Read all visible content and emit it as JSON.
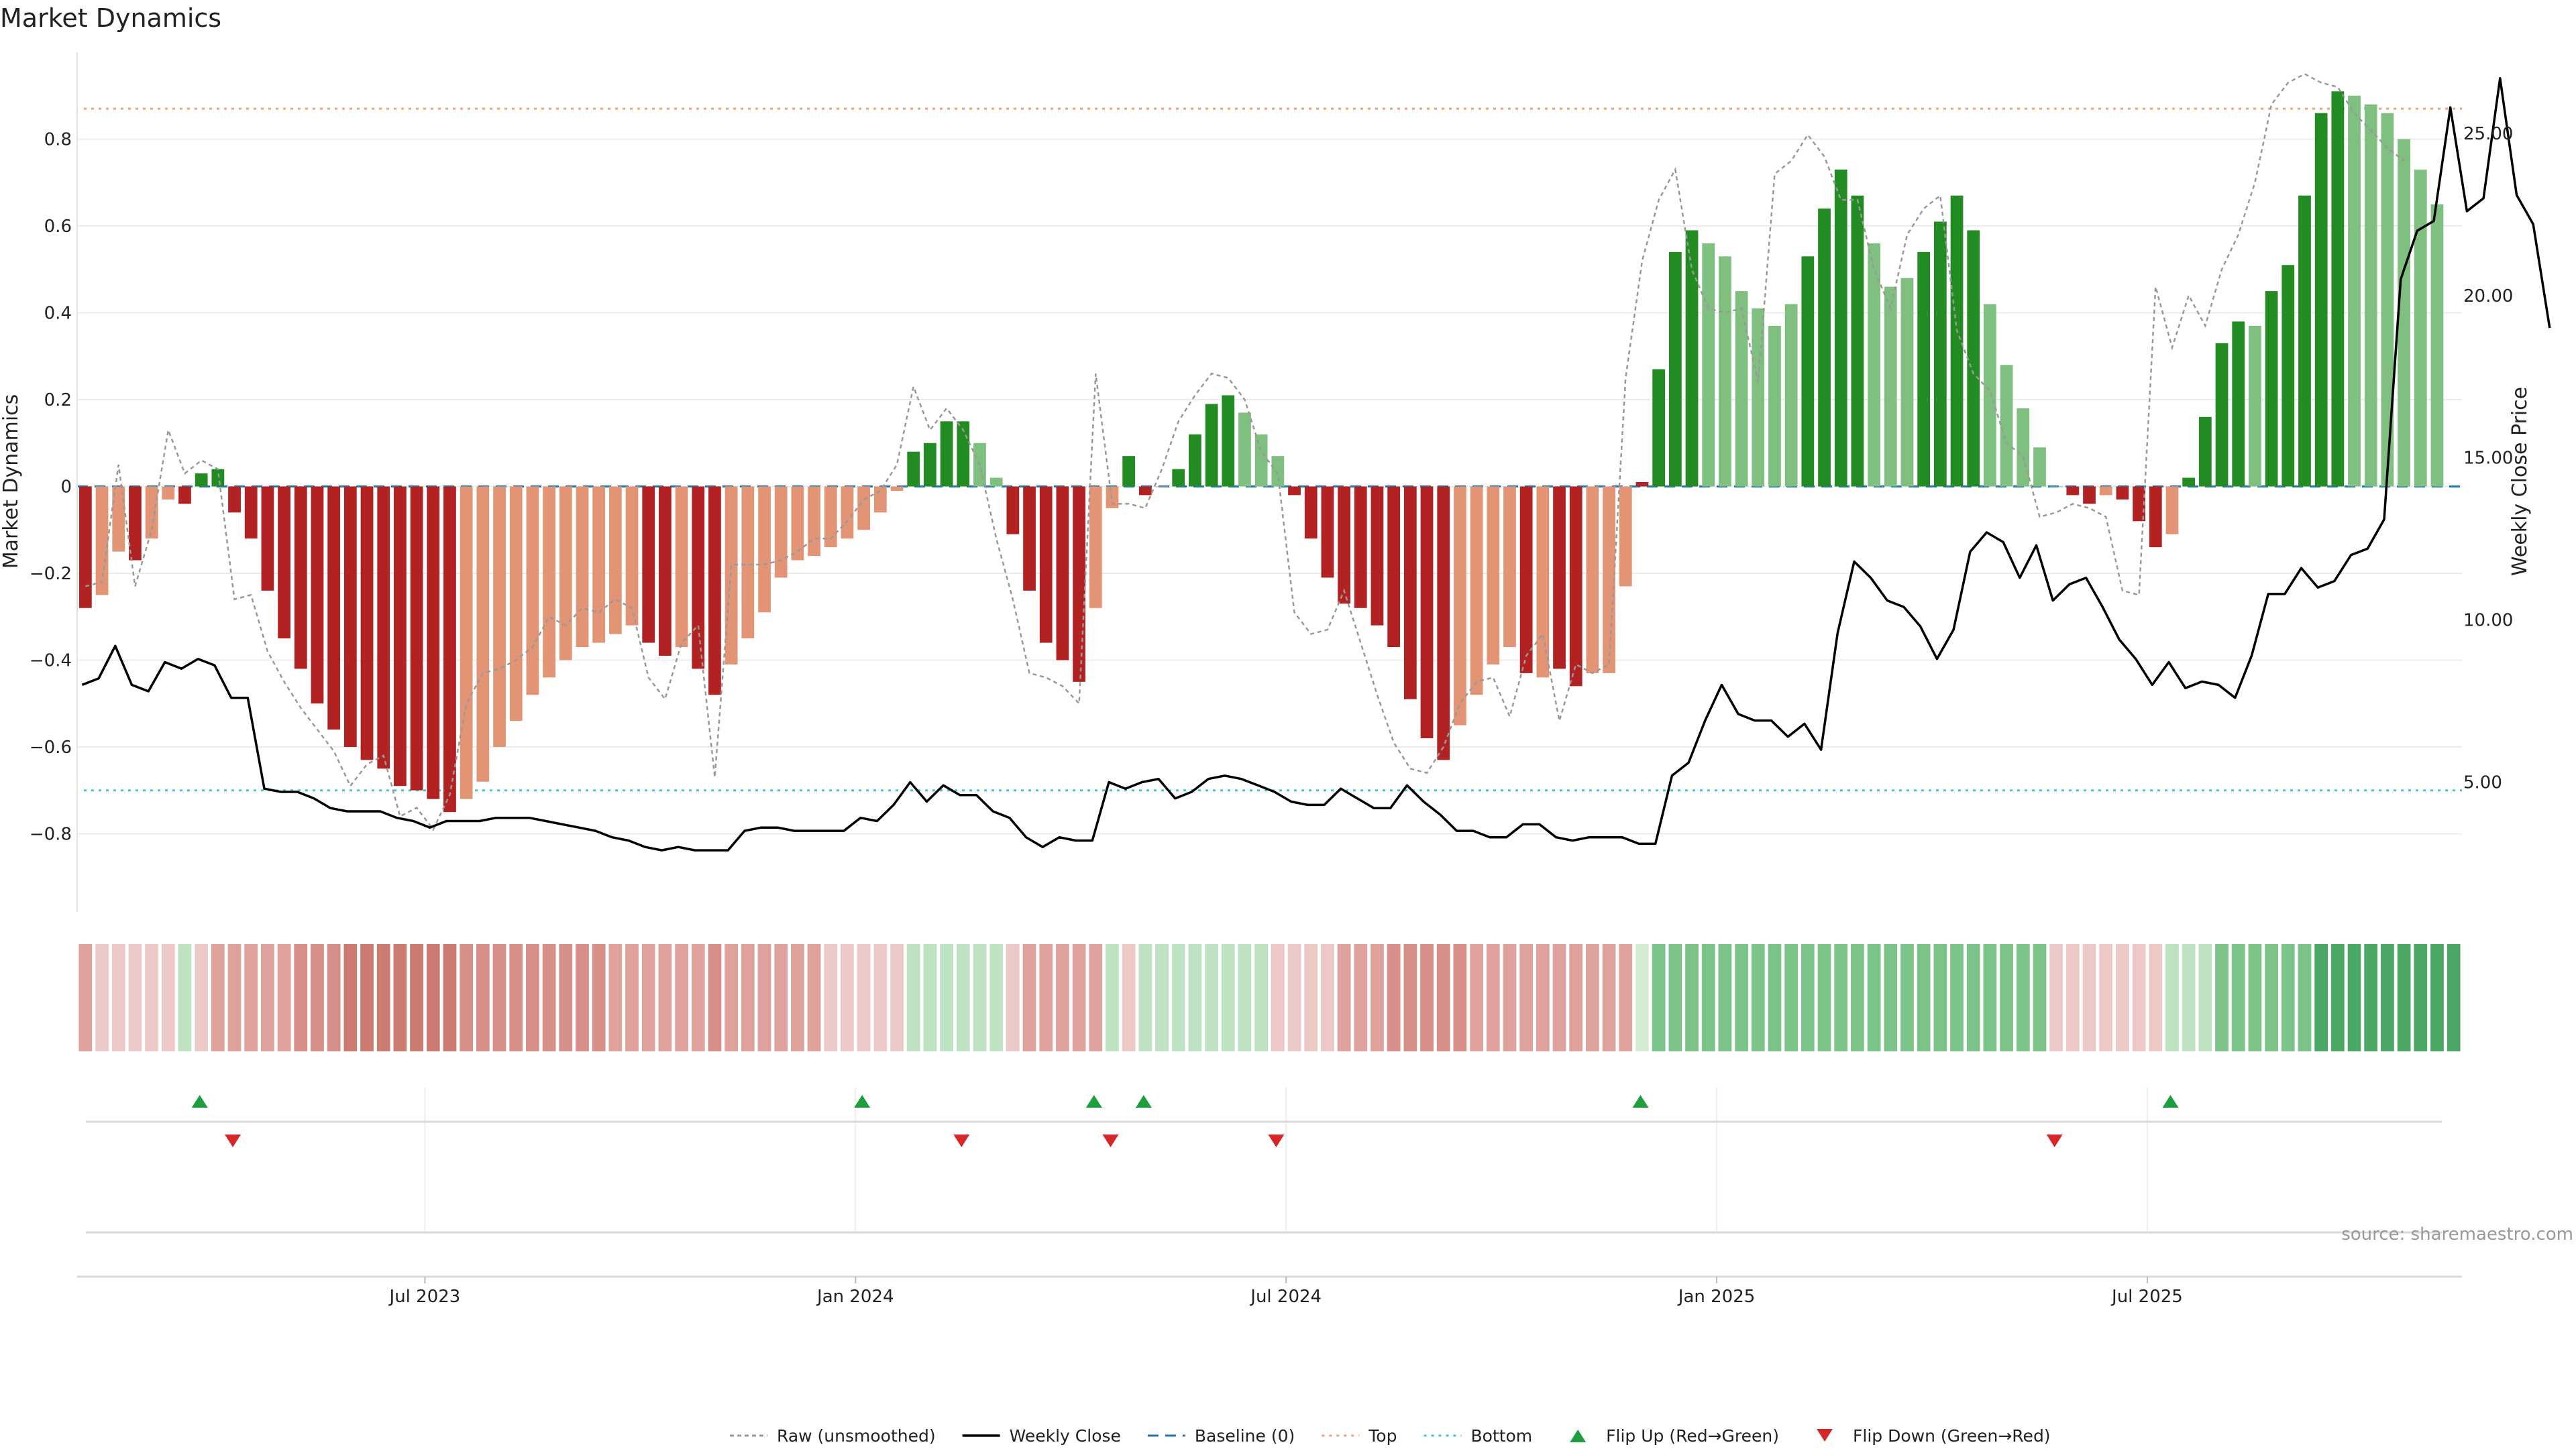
{
  "chart_data": {
    "type": "bar",
    "title": "Market Dynamics",
    "source": "source: sharemaestro.com",
    "ylabel_left": "Market Dynamics",
    "ylabel_right": "Weekly Close Price",
    "ylim_left": [
      -0.98,
      1.0
    ],
    "ylim_right": [
      1.0,
      27.5
    ],
    "yticks_left": [
      "−0.8",
      "−0.6",
      "−0.4",
      "−0.2",
      "0",
      "0.2",
      "0.4",
      "0.6",
      "0.8"
    ],
    "yticks_left_values": [
      -0.8,
      -0.6,
      -0.4,
      -0.2,
      0,
      0.2,
      0.4,
      0.6,
      0.8
    ],
    "yticks_right": [
      "5.00",
      "10.00",
      "15.00",
      "20.00",
      "25.00"
    ],
    "yticks_right_values": [
      5,
      10,
      15,
      20,
      25
    ],
    "x_start": "2023-02-06",
    "bar_weeks": 144,
    "xticks": [
      {
        "label": "Jul 2023",
        "week": 21
      },
      {
        "label": "Jan 2024",
        "week": 47
      },
      {
        "label": "Jul 2024",
        "week": 73
      },
      {
        "label": "Jan 2025",
        "week": 99
      },
      {
        "label": "Jul 2025",
        "week": 125
      }
    ],
    "top_level": 0.87,
    "bottom_level": -0.7,
    "baseline": 0,
    "colors": {
      "strong_red": "#b22222",
      "light_red": "#e39474",
      "strong_green": "#228b22",
      "light_green": "#7fbf7f",
      "raw": "#999999",
      "close": "#000000",
      "baseline": "#1f77b4",
      "top": "#f0a07a",
      "bottom": "#40c8d0",
      "flip_up": "#1e9e3e",
      "flip_down": "#d62728"
    },
    "series": [
      {
        "name": "Market Dynamics",
        "values": [
          -0.28,
          -0.25,
          -0.15,
          -0.17,
          -0.12,
          -0.03,
          -0.04,
          0.03,
          0.04,
          -0.06,
          -0.12,
          -0.24,
          -0.35,
          -0.42,
          -0.5,
          -0.56,
          -0.6,
          -0.63,
          -0.65,
          -0.69,
          -0.7,
          -0.72,
          -0.75,
          -0.72,
          -0.68,
          -0.6,
          -0.54,
          -0.48,
          -0.44,
          -0.4,
          -0.37,
          -0.36,
          -0.34,
          -0.32,
          -0.36,
          -0.39,
          -0.37,
          -0.42,
          -0.48,
          -0.41,
          -0.35,
          -0.29,
          -0.21,
          -0.17,
          -0.16,
          -0.14,
          -0.12,
          -0.1,
          -0.06,
          -0.01,
          0.08,
          0.1,
          0.15,
          0.15,
          0.1,
          0.02,
          -0.11,
          -0.24,
          -0.36,
          -0.4,
          -0.45,
          -0.28,
          -0.05,
          0.07,
          -0.02,
          0.0,
          0.04,
          0.12,
          0.19,
          0.21,
          0.17,
          0.12,
          0.07,
          -0.02,
          -0.12,
          -0.21,
          -0.27,
          -0.28,
          -0.32,
          -0.37,
          -0.49,
          -0.58,
          -0.63,
          -0.55,
          -0.48,
          -0.41,
          -0.37,
          -0.43,
          -0.44,
          -0.42,
          -0.46,
          -0.43,
          -0.43,
          -0.23,
          0.01,
          0.27,
          0.54,
          0.59,
          0.56,
          0.53,
          0.45,
          0.41,
          0.37,
          0.42,
          0.53,
          0.64,
          0.73,
          0.67,
          0.56,
          0.46,
          0.48,
          0.54,
          0.61,
          0.67,
          0.59,
          0.42,
          0.28,
          0.18,
          0.09,
          0.0,
          -0.02,
          -0.04,
          -0.02,
          -0.03,
          -0.08,
          -0.14,
          -0.11,
          0.02,
          0.16,
          0.33,
          0.38,
          0.37,
          0.45,
          0.51,
          0.67,
          0.86,
          0.91,
          0.9,
          0.88,
          0.86,
          0.8,
          0.73,
          0.65
        ],
        "style": [
          "SR",
          "LR",
          "LR",
          "SR",
          "LR",
          "LR",
          "SR",
          "SG",
          "SG",
          "SR",
          "SR",
          "SR",
          "SR",
          "SR",
          "SR",
          "SR",
          "SR",
          "SR",
          "SR",
          "SR",
          "SR",
          "SR",
          "SR",
          "LR",
          "LR",
          "LR",
          "LR",
          "LR",
          "LR",
          "LR",
          "LR",
          "LR",
          "LR",
          "LR",
          "SR",
          "SR",
          "LR",
          "SR",
          "SR",
          "LR",
          "LR",
          "LR",
          "LR",
          "LR",
          "LR",
          "LR",
          "LR",
          "LR",
          "LR",
          "LR",
          "SG",
          "SG",
          "SG",
          "SG",
          "LG",
          "LG",
          "SR",
          "SR",
          "SR",
          "SR",
          "SR",
          "LR",
          "LR",
          "SG",
          "SR",
          "LR",
          "SG",
          "SG",
          "SG",
          "SG",
          "LG",
          "LG",
          "LG",
          "SR",
          "SR",
          "SR",
          "SR",
          "SR",
          "SR",
          "SR",
          "SR",
          "SR",
          "SR",
          "LR",
          "LR",
          "LR",
          "LR",
          "SR",
          "LR",
          "SR",
          "SR",
          "LR",
          "LR",
          "LR",
          "SR",
          "SG",
          "SG",
          "SG",
          "LG",
          "LG",
          "LG",
          "LG",
          "LG",
          "LG",
          "SG",
          "SG",
          "SG",
          "SG",
          "LG",
          "LG",
          "LG",
          "SG",
          "SG",
          "SG",
          "SG",
          "LG",
          "LG",
          "LG",
          "LG",
          "LG",
          "SR",
          "SR",
          "LR",
          "SR",
          "SR",
          "SR",
          "LR",
          "SG",
          "SG",
          "SG",
          "SG",
          "LG",
          "SG",
          "SG",
          "SG",
          "SG",
          "SG",
          "LG",
          "LG",
          "LG",
          "LG",
          "LG",
          "LG"
        ]
      },
      {
        "name": "Raw (unsmoothed)",
        "values": [
          -0.23,
          -0.22,
          0.05,
          -0.23,
          -0.1,
          0.13,
          0.03,
          0.06,
          0.04,
          -0.26,
          -0.25,
          -0.38,
          -0.45,
          -0.51,
          -0.56,
          -0.61,
          -0.69,
          -0.64,
          -0.62,
          -0.76,
          -0.74,
          -0.79,
          -0.71,
          -0.5,
          -0.43,
          -0.42,
          -0.4,
          -0.37,
          -0.3,
          -0.32,
          -0.28,
          -0.29,
          -0.26,
          -0.28,
          -0.44,
          -0.49,
          -0.36,
          -0.32,
          -0.67,
          -0.18,
          -0.18,
          -0.18,
          -0.17,
          -0.15,
          -0.12,
          -0.12,
          -0.08,
          -0.03,
          -0.01,
          0.05,
          0.23,
          0.13,
          0.18,
          0.13,
          0.05,
          -0.12,
          -0.26,
          -0.43,
          -0.44,
          -0.46,
          -0.5,
          0.26,
          -0.04,
          -0.04,
          -0.05,
          0.04,
          0.15,
          0.21,
          0.26,
          0.25,
          0.2,
          0.08,
          0.03,
          -0.29,
          -0.34,
          -0.33,
          -0.24,
          -0.36,
          -0.48,
          -0.59,
          -0.65,
          -0.66,
          -0.6,
          -0.5,
          -0.45,
          -0.44,
          -0.53,
          -0.39,
          -0.34,
          -0.54,
          -0.41,
          -0.43,
          -0.41,
          0.25,
          0.52,
          0.66,
          0.73,
          0.5,
          0.41,
          0.4,
          0.41,
          0.24,
          0.72,
          0.75,
          0.81,
          0.76,
          0.66,
          0.66,
          0.5,
          0.41,
          0.58,
          0.64,
          0.67,
          0.36,
          0.26,
          0.22,
          0.1,
          0.07,
          -0.07,
          -0.06,
          -0.04,
          -0.05,
          -0.07,
          -0.24,
          -0.25,
          0.46,
          0.32,
          0.44,
          0.37,
          0.5,
          0.58,
          0.7,
          0.88,
          0.93,
          0.95,
          0.93,
          0.92,
          0.86,
          0.82,
          0.78,
          0.75
        ],
        "x_offset": 0.5
      },
      {
        "name": "Weekly Close",
        "values": [
          8.0,
          8.2,
          9.2,
          8.0,
          7.8,
          8.7,
          8.5,
          8.8,
          8.6,
          7.6,
          7.6,
          4.8,
          4.7,
          4.7,
          4.5,
          4.2,
          4.1,
          4.1,
          4.1,
          3.9,
          3.8,
          3.6,
          3.8,
          3.8,
          3.8,
          3.9,
          3.9,
          3.9,
          3.8,
          3.7,
          3.6,
          3.5,
          3.3,
          3.2,
          3.0,
          2.9,
          3.0,
          2.9,
          2.9,
          2.9,
          3.5,
          3.6,
          3.6,
          3.5,
          3.5,
          3.5,
          3.5,
          3.9,
          3.8,
          4.3,
          5.0,
          4.4,
          4.9,
          4.6,
          4.6,
          4.1,
          3.9,
          3.3,
          3.0,
          3.3,
          3.2,
          3.2,
          5.0,
          4.8,
          5.0,
          5.1,
          4.5,
          4.7,
          5.1,
          5.2,
          5.1,
          4.9,
          4.7,
          4.4,
          4.3,
          4.3,
          4.8,
          4.5,
          4.2,
          4.2,
          4.9,
          4.4,
          4.0,
          3.5,
          3.5,
          3.3,
          3.3,
          3.7,
          3.7,
          3.3,
          3.2,
          3.3,
          3.3,
          3.3,
          3.1,
          3.1,
          5.2,
          5.6,
          6.9,
          8.0,
          7.1,
          6.9,
          6.9,
          6.4,
          6.8,
          6.0,
          9.6,
          11.8,
          11.3,
          10.6,
          10.4,
          9.8,
          8.8,
          9.7,
          12.1,
          12.7,
          12.4,
          11.3,
          12.3,
          10.6,
          11.1,
          11.3,
          10.4,
          9.4,
          8.8,
          8.0,
          8.7,
          7.9,
          8.1,
          8.0,
          7.6,
          8.9,
          10.8,
          10.8,
          11.6,
          11.0,
          11.2,
          12.0,
          12.2,
          13.1,
          20.5,
          22.0,
          22.3,
          25.8,
          22.6,
          23.0,
          26.7,
          23.1,
          22.2,
          19.0
        ],
        "x_offset": 0.3
      }
    ],
    "regime_strip": [
      "r2",
      "r1",
      "r1",
      "r1",
      "r1",
      "r1",
      "g1",
      "r1",
      "r2",
      "r2",
      "r2",
      "r2",
      "r2",
      "r3",
      "r3",
      "r3",
      "r4",
      "r4",
      "r4",
      "r4",
      "r4",
      "r4",
      "r4",
      "r3",
      "r3",
      "r3",
      "r3",
      "r3",
      "r3",
      "r3",
      "r3",
      "r3",
      "r2",
      "r2",
      "r2",
      "r2",
      "r2",
      "r2",
      "r3",
      "r2",
      "r2",
      "r2",
      "r2",
      "r2",
      "r2",
      "r1",
      "r1",
      "r1",
      "r1",
      "r1",
      "g1",
      "g1",
      "g1",
      "g1",
      "g1",
      "g1",
      "r1",
      "r2",
      "r2",
      "r2",
      "r2",
      "r2",
      "g1",
      "r1",
      "g1",
      "g1",
      "g1",
      "g1",
      "g1",
      "g1",
      "g1",
      "g1",
      "r1",
      "r1",
      "r1",
      "r1",
      "r2",
      "r2",
      "r2",
      "r3",
      "r3",
      "r3",
      "r3",
      "r3",
      "r2",
      "r2",
      "r2",
      "r2",
      "r2",
      "r2",
      "r2",
      "r2",
      "r2",
      "r2",
      "g0",
      "g2",
      "g2",
      "g2",
      "g2",
      "g2",
      "g2",
      "g2",
      "g2",
      "g2",
      "g2",
      "g2",
      "g2",
      "g2",
      "g2",
      "g2",
      "g2",
      "g2",
      "g2",
      "g2",
      "g2",
      "g2",
      "g2",
      "g2",
      "g2",
      "r1",
      "r1",
      "r1",
      "r1",
      "r1",
      "r1",
      "r1",
      "g1",
      "g1",
      "g1",
      "g2",
      "g2",
      "g2",
      "g2",
      "g2",
      "g2",
      "g3",
      "g3",
      "g3",
      "g3",
      "g3",
      "g3",
      "g3",
      "g3",
      "g3"
    ],
    "strip_palette": {
      "r1": "#ecc9c6",
      "r2": "#dea19c",
      "r3": "#d68f89",
      "r4": "#cc7b73",
      "g0": "#d5ebd5",
      "g1": "#bfe2c3",
      "g2": "#7cc389",
      "g3": "#4aa864"
    },
    "flip_up_weeks": [
      7,
      47,
      61,
      64,
      94,
      126
    ],
    "flip_down_weeks": [
      9,
      53,
      62,
      72,
      119
    ],
    "legend": [
      {
        "label": "Raw (unsmoothed)",
        "kind": "raw"
      },
      {
        "label": "Weekly Close",
        "kind": "close"
      },
      {
        "label": "Baseline (0)",
        "kind": "baseline"
      },
      {
        "label": "Top",
        "kind": "top"
      },
      {
        "label": "Bottom",
        "kind": "bottom"
      },
      {
        "label": "Flip Up (Red→Green)",
        "kind": "flip_up"
      },
      {
        "label": "Flip Down (Green→Red)",
        "kind": "flip_down"
      }
    ]
  }
}
